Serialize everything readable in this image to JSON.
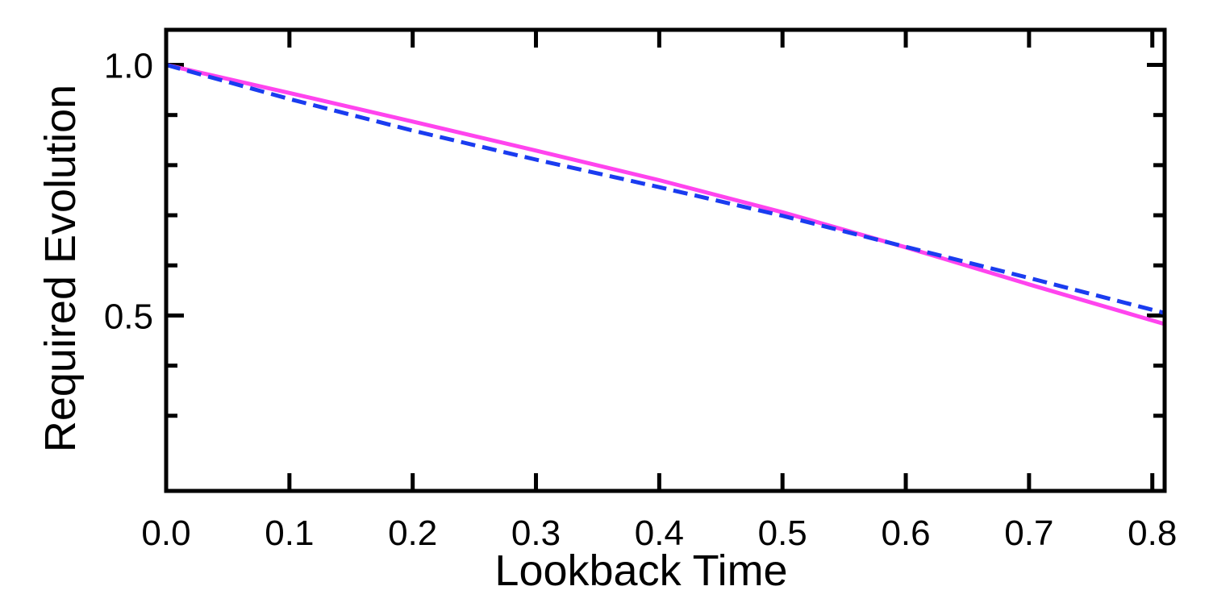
{
  "chart_data": {
    "type": "line",
    "xlabel": "Lookback Time",
    "ylabel": "Required Evolution",
    "xlim": [
      0.0,
      0.81
    ],
    "ylim": [
      0.15,
      1.07
    ],
    "x_ticks": [
      0.0,
      0.1,
      0.2,
      0.3,
      0.4,
      0.5,
      0.6,
      0.7,
      0.8
    ],
    "x_tick_labels": [
      "0.0",
      "0.1",
      "0.2",
      "0.3",
      "0.4",
      "0.5",
      "0.6",
      "0.7",
      "0.8"
    ],
    "y_major_ticks": [
      0.5,
      1.0
    ],
    "y_tick_labels": [
      "0.5",
      "1.0"
    ],
    "y_minor_ticks": [
      0.3,
      0.4,
      0.6,
      0.7,
      0.8,
      0.9
    ],
    "grid": false,
    "series": [
      {
        "style": "solid",
        "color": "#ff44ee",
        "x": [
          0.0,
          0.1,
          0.2,
          0.3,
          0.4,
          0.5,
          0.6,
          0.7,
          0.81
        ],
        "y": [
          1.0,
          0.944,
          0.887,
          0.829,
          0.77,
          0.706,
          0.636,
          0.562,
          0.483
        ]
      },
      {
        "style": "dashed",
        "color": "#1a3cf0",
        "x": [
          0.0,
          0.1,
          0.2,
          0.3,
          0.4,
          0.5,
          0.6,
          0.7,
          0.81
        ],
        "y": [
          1.0,
          0.932,
          0.869,
          0.811,
          0.756,
          0.699,
          0.637,
          0.575,
          0.505
        ]
      }
    ]
  }
}
